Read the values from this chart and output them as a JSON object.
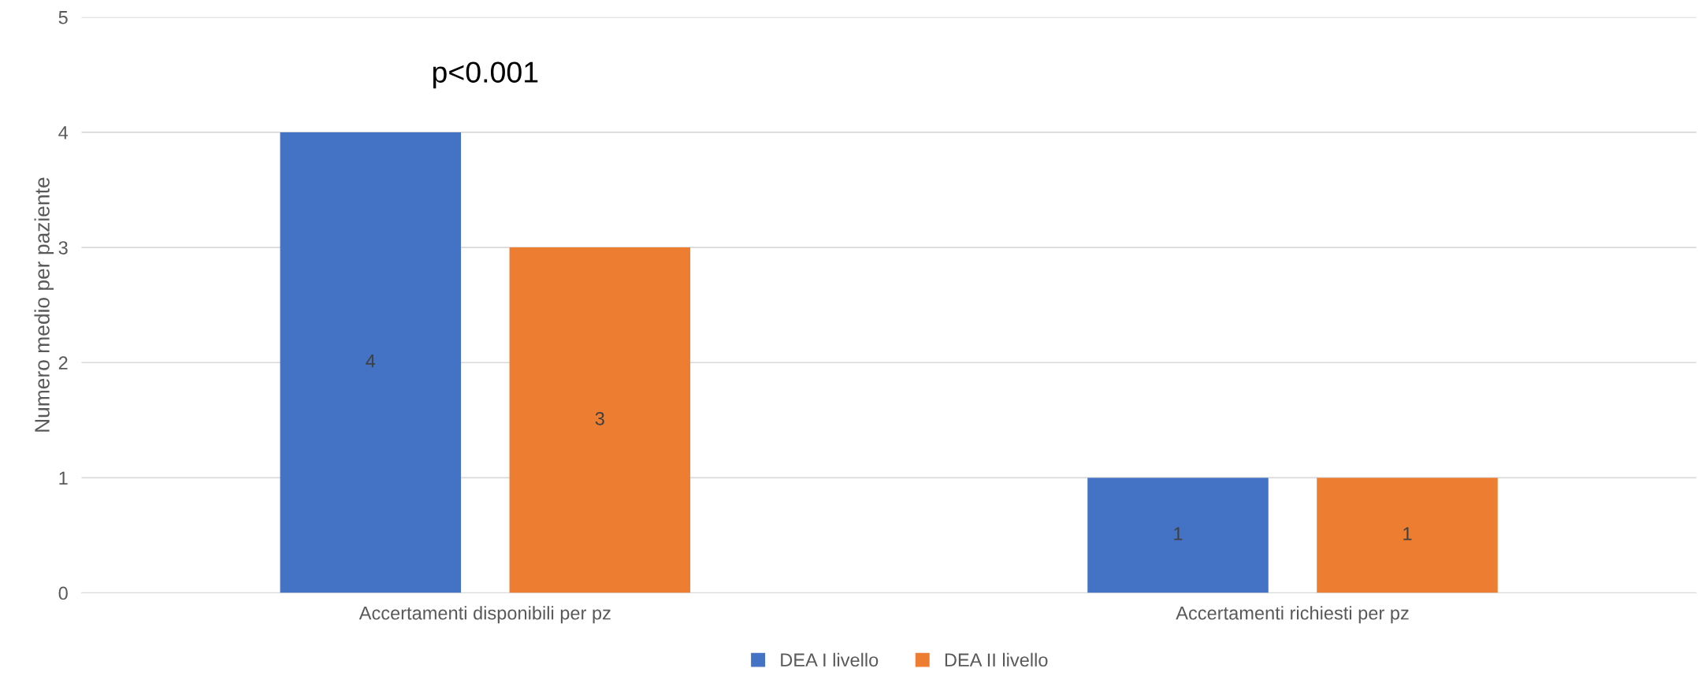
{
  "chart_data": {
    "type": "bar",
    "ylabel": "Numero medio per paziente",
    "categories": [
      "Accertamenti disponibili per pz",
      "Accertamenti richiesti per pz"
    ],
    "series": [
      {
        "name": "DEA I livello",
        "color": "#4472c4",
        "values": [
          4,
          1
        ]
      },
      {
        "name": "DEA II livello",
        "color": "#ed7d31",
        "values": [
          3,
          1
        ]
      }
    ],
    "ylim": [
      0,
      5
    ],
    "yticks": [
      0,
      1,
      2,
      3,
      4,
      5
    ],
    "grid": "y",
    "legend": "bottom",
    "data_labels": true,
    "annotations": [
      "p<0.001"
    ]
  }
}
